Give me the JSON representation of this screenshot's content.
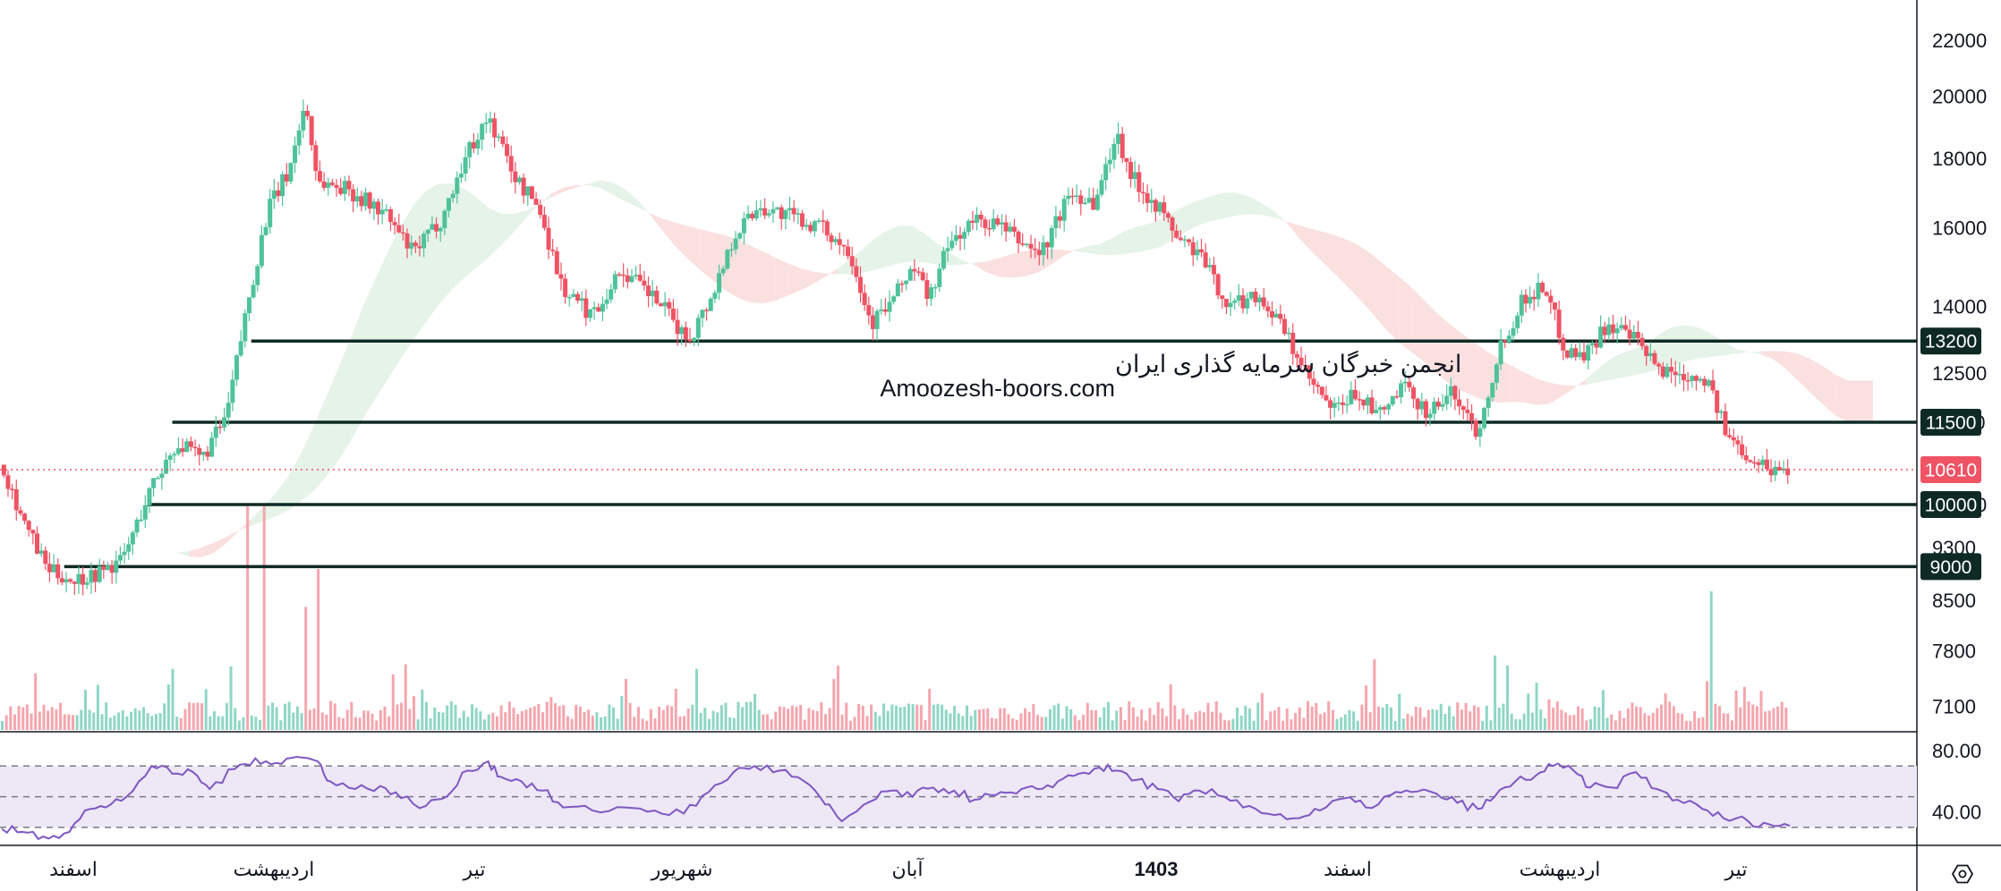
{
  "colors": {
    "up": "#4fc29a",
    "down": "#ef5364",
    "vol_up": "#8fd6c5",
    "vol_down": "#f5a5ad",
    "cloud_bull": "#e6f3e9",
    "cloud_bear": "#fbe0e0",
    "level": "#0f2a25",
    "price_marker": "#ef5364",
    "rsi_line": "#7e57c2",
    "rsi_band": "#ede7f6",
    "axis": "#131722"
  },
  "watermark": {
    "line1": "انجمن خبرگان سرمایه گذاری ایران",
    "line2": "Amoozesh-boors.com"
  },
  "settings_icon": "hexagon-settings-icon",
  "chart_data": [
    {
      "type": "candlestick",
      "y_scale": "log",
      "ylim": [
        6800,
        22500
      ],
      "y_ticks": [
        "7100",
        "7800",
        "8500",
        "9300",
        "10000",
        "11500",
        "12500",
        "14000",
        "16000",
        "18000",
        "20000",
        "22000"
      ],
      "x_ticks": [
        {
          "label": "اسفند",
          "bold": false
        },
        {
          "label": "اردیبهشت",
          "bold": false
        },
        {
          "label": "تیر",
          "bold": false
        },
        {
          "label": "شهریور",
          "bold": false
        },
        {
          "label": "آبان",
          "bold": false
        },
        {
          "label": "1403",
          "bold": true
        },
        {
          "label": "اسفند",
          "bold": false
        },
        {
          "label": "اردیبهشت",
          "bold": false
        },
        {
          "label": "تیر",
          "bold": false
        }
      ],
      "horizontal_levels": [
        "13200",
        "11500",
        "10000",
        "9000"
      ],
      "last_price": "10610",
      "close_path": [
        [
          0,
          10700
        ],
        [
          12,
          9600
        ],
        [
          22,
          8950
        ],
        [
          34,
          8800
        ],
        [
          46,
          8900
        ],
        [
          58,
          9100
        ],
        [
          72,
          10300
        ],
        [
          84,
          11100
        ],
        [
          96,
          10800
        ],
        [
          108,
          11600
        ],
        [
          118,
          14000
        ],
        [
          128,
          16500
        ],
        [
          138,
          17600
        ],
        [
          146,
          19800
        ],
        [
          152,
          17300
        ],
        [
          166,
          17100
        ],
        [
          184,
          16400
        ],
        [
          198,
          15300
        ],
        [
          212,
          16300
        ],
        [
          224,
          18200
        ],
        [
          234,
          19300
        ],
        [
          248,
          17300
        ],
        [
          258,
          16600
        ],
        [
          270,
          14400
        ],
        [
          284,
          13800
        ],
        [
          298,
          14900
        ],
        [
          316,
          14100
        ],
        [
          330,
          13200
        ],
        [
          342,
          14300
        ],
        [
          352,
          15800
        ],
        [
          364,
          16600
        ],
        [
          380,
          16300
        ],
        [
          394,
          16000
        ],
        [
          408,
          15400
        ],
        [
          418,
          13600
        ],
        [
          428,
          14100
        ],
        [
          438,
          15000
        ],
        [
          446,
          14200
        ],
        [
          456,
          15600
        ],
        [
          468,
          16200
        ],
        [
          478,
          16100
        ],
        [
          488,
          15700
        ],
        [
          500,
          15300
        ],
        [
          514,
          17000
        ],
        [
          526,
          16700
        ],
        [
          536,
          18800
        ],
        [
          544,
          17400
        ],
        [
          556,
          16600
        ],
        [
          566,
          15700
        ],
        [
          576,
          15300
        ],
        [
          590,
          14000
        ],
        [
          604,
          14300
        ],
        [
          616,
          13500
        ],
        [
          628,
          12400
        ],
        [
          640,
          11700
        ],
        [
          652,
          12100
        ],
        [
          662,
          11600
        ],
        [
          674,
          12200
        ],
        [
          686,
          11700
        ],
        [
          698,
          12100
        ],
        [
          710,
          11300
        ],
        [
          720,
          13000
        ],
        [
          732,
          14200
        ],
        [
          742,
          14500
        ],
        [
          752,
          13000
        ],
        [
          762,
          12900
        ],
        [
          772,
          13600
        ],
        [
          786,
          13200
        ],
        [
          796,
          12600
        ],
        [
          806,
          12500
        ],
        [
          820,
          12400
        ],
        [
          830,
          11200
        ],
        [
          840,
          10900
        ],
        [
          850,
          10620
        ],
        [
          860,
          10610
        ]
      ],
      "volume_spikes": [
        {
          "t": 118,
          "v": 1.0,
          "dir": "down"
        },
        {
          "t": 126,
          "v": 1.0,
          "dir": "down"
        },
        {
          "t": 152,
          "v": 0.72,
          "dir": "down"
        },
        {
          "t": 146,
          "v": 0.55,
          "dir": "down"
        },
        {
          "t": 822,
          "v": 0.62,
          "dir": "up"
        }
      ],
      "levels_meta": [
        {
          "label": "13200",
          "from": 120
        },
        {
          "label": "11500",
          "from": 82
        },
        {
          "label": "10000",
          "from": 70
        },
        {
          "label": "9000",
          "from": 30
        }
      ]
    },
    {
      "type": "line",
      "name": "RSI",
      "ylim": [
        20,
        90
      ],
      "y_ticks": [
        "80.00",
        "40.00"
      ],
      "band": [
        30,
        70
      ],
      "mid": 50,
      "values": [
        [
          0,
          29
        ],
        [
          10,
          27
        ],
        [
          20,
          24
        ],
        [
          30,
          26
        ],
        [
          40,
          41
        ],
        [
          50,
          43
        ],
        [
          60,
          50
        ],
        [
          72,
          70
        ],
        [
          82,
          65
        ],
        [
          92,
          66
        ],
        [
          100,
          55
        ],
        [
          112,
          68
        ],
        [
          122,
          75
        ],
        [
          132,
          72
        ],
        [
          142,
          76
        ],
        [
          152,
          73
        ],
        [
          158,
          60
        ],
        [
          170,
          55
        ],
        [
          182,
          57
        ],
        [
          192,
          49
        ],
        [
          204,
          44
        ],
        [
          214,
          50
        ],
        [
          224,
          67
        ],
        [
          234,
          73
        ],
        [
          240,
          63
        ],
        [
          250,
          60
        ],
        [
          260,
          54
        ],
        [
          270,
          43
        ],
        [
          284,
          41
        ],
        [
          300,
          43
        ],
        [
          314,
          41
        ],
        [
          328,
          39
        ],
        [
          340,
          53
        ],
        [
          352,
          66
        ],
        [
          362,
          70
        ],
        [
          374,
          67
        ],
        [
          386,
          60
        ],
        [
          396,
          45
        ],
        [
          404,
          34
        ],
        [
          418,
          47
        ],
        [
          428,
          54
        ],
        [
          438,
          50
        ],
        [
          448,
          56
        ],
        [
          458,
          54
        ],
        [
          468,
          48
        ],
        [
          478,
          51
        ],
        [
          488,
          52
        ],
        [
          498,
          55
        ],
        [
          508,
          60
        ],
        [
          518,
          65
        ],
        [
          528,
          69
        ],
        [
          536,
          67
        ],
        [
          546,
          61
        ],
        [
          556,
          55
        ],
        [
          566,
          47
        ],
        [
          576,
          54
        ],
        [
          588,
          50
        ],
        [
          600,
          44
        ],
        [
          612,
          38
        ],
        [
          624,
          36
        ],
        [
          634,
          41
        ],
        [
          646,
          49
        ],
        [
          656,
          43
        ],
        [
          668,
          51
        ],
        [
          678,
          53
        ],
        [
          690,
          52
        ],
        [
          700,
          46
        ],
        [
          710,
          42
        ],
        [
          718,
          50
        ],
        [
          728,
          60
        ],
        [
          738,
          64
        ],
        [
          746,
          70
        ],
        [
          756,
          67
        ],
        [
          764,
          56
        ],
        [
          774,
          56
        ],
        [
          786,
          66
        ],
        [
          796,
          55
        ],
        [
          806,
          48
        ],
        [
          818,
          42
        ],
        [
          828,
          36
        ],
        [
          840,
          34
        ],
        [
          850,
          32
        ],
        [
          860,
          31
        ]
      ]
    }
  ]
}
